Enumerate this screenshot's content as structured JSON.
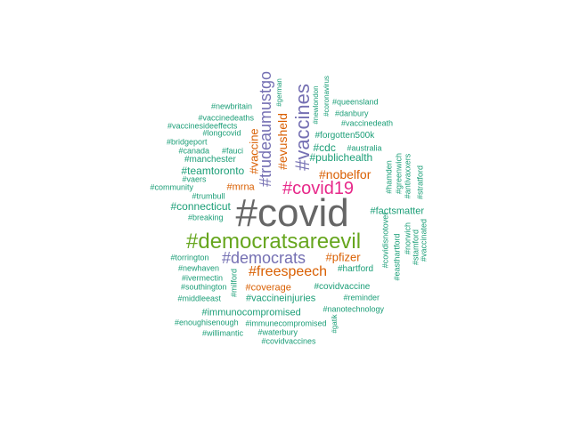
{
  "palette": {
    "teal": "#1b9e77",
    "orange": "#d95f02",
    "purple": "#7570b3",
    "magenta": "#e7298a",
    "green": "#66a61e",
    "gold": "#e6ab02",
    "brown": "#a6761d",
    "gray": "#666666"
  },
  "words": [
    {
      "text": "#covid",
      "color": "gray"
    },
    {
      "text": "#democratsareevil",
      "color": "green"
    },
    {
      "text": "#covid19",
      "color": "magenta"
    },
    {
      "text": "#democrats",
      "color": "purple"
    },
    {
      "text": "#vaccines",
      "color": "purple"
    },
    {
      "text": "#trudeaumustgo",
      "color": "purple"
    },
    {
      "text": "#freespeech",
      "color": "orange"
    },
    {
      "text": "#evusheld",
      "color": "orange"
    },
    {
      "text": "#nobelfor",
      "color": "orange"
    },
    {
      "text": "#pfizer",
      "color": "orange"
    },
    {
      "text": "#vaccine",
      "color": "orange"
    },
    {
      "text": "#mrna",
      "color": "orange"
    },
    {
      "text": "#coverage",
      "color": "orange"
    },
    {
      "text": "#cdc",
      "color": "teal"
    },
    {
      "text": "#publichealth",
      "color": "teal"
    },
    {
      "text": "#teamtoronto",
      "color": "teal"
    },
    {
      "text": "#connecticut",
      "color": "teal"
    },
    {
      "text": "#immunocompromised",
      "color": "teal"
    },
    {
      "text": "#vaccineinjuries",
      "color": "teal"
    },
    {
      "text": "#factsmatter",
      "color": "teal"
    },
    {
      "text": "#manchester",
      "color": "teal"
    },
    {
      "text": "#covidvaccine",
      "color": "teal"
    },
    {
      "text": "#hartford",
      "color": "teal"
    },
    {
      "text": "#forgotten500k",
      "color": "teal"
    },
    {
      "text": "#queensland",
      "color": "teal"
    },
    {
      "text": "#danbury",
      "color": "teal"
    },
    {
      "text": "#vaccinedeath",
      "color": "teal"
    },
    {
      "text": "#newlondon",
      "color": "teal"
    },
    {
      "text": "#coronavirus",
      "color": "teal"
    },
    {
      "text": "#german",
      "color": "teal"
    },
    {
      "text": "#newbritain",
      "color": "teal"
    },
    {
      "text": "#vaccinedeaths",
      "color": "teal"
    },
    {
      "text": "#vaccinesideeffects",
      "color": "teal"
    },
    {
      "text": "#longcovid",
      "color": "teal"
    },
    {
      "text": "#bridgeport",
      "color": "teal"
    },
    {
      "text": "#canada",
      "color": "teal"
    },
    {
      "text": "#fauci",
      "color": "teal"
    },
    {
      "text": "#australia",
      "color": "teal"
    },
    {
      "text": "#vaers",
      "color": "teal"
    },
    {
      "text": "#community",
      "color": "teal"
    },
    {
      "text": "#trumbull",
      "color": "teal"
    },
    {
      "text": "#breaking",
      "color": "teal"
    },
    {
      "text": "#torrington",
      "color": "teal"
    },
    {
      "text": "#newhaven",
      "color": "teal"
    },
    {
      "text": "#ivermectin",
      "color": "teal"
    },
    {
      "text": "#southington",
      "color": "teal"
    },
    {
      "text": "#middleeast",
      "color": "teal"
    },
    {
      "text": "#milford",
      "color": "teal"
    },
    {
      "text": "#reminder",
      "color": "teal"
    },
    {
      "text": "#nanotechnology",
      "color": "teal"
    },
    {
      "text": "#enoughisenough",
      "color": "teal"
    },
    {
      "text": "#immunecompromised",
      "color": "teal"
    },
    {
      "text": "#willimantic",
      "color": "teal"
    },
    {
      "text": "#waterbury",
      "color": "teal"
    },
    {
      "text": "#covidvaccines",
      "color": "teal"
    },
    {
      "text": "#gatik",
      "color": "teal"
    },
    {
      "text": "#hamden",
      "color": "teal"
    },
    {
      "text": "#greenwich",
      "color": "teal"
    },
    {
      "text": "#antivaxxers",
      "color": "teal"
    },
    {
      "text": "#stratford",
      "color": "teal"
    },
    {
      "text": "#covidisnotover",
      "color": "teal"
    },
    {
      "text": "#easthartford",
      "color": "teal"
    },
    {
      "text": "#norwich",
      "color": "teal"
    },
    {
      "text": "#stamford",
      "color": "teal"
    },
    {
      "text": "#vaccinated",
      "color": "teal"
    }
  ]
}
